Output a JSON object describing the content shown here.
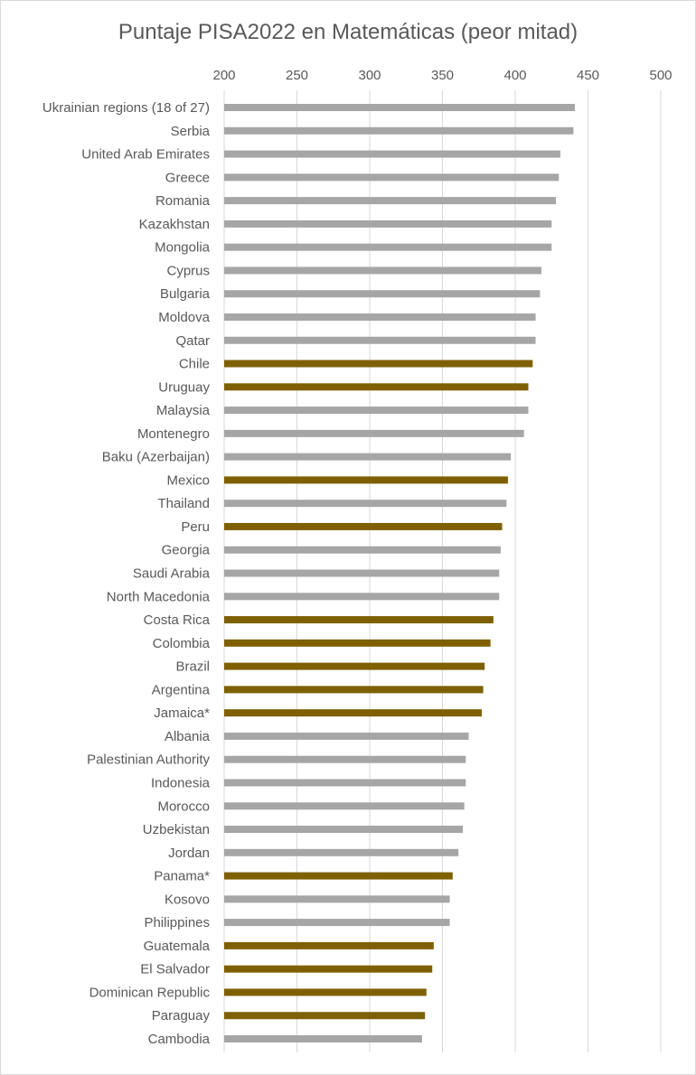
{
  "chart_data": {
    "type": "bar",
    "orientation": "horizontal",
    "title": "Puntaje PISA2022 en Matemáticas (peor mitad)",
    "xlim": [
      200,
      500
    ],
    "xticks": [
      200,
      250,
      300,
      350,
      400,
      450,
      500
    ],
    "grid": true,
    "colors": {
      "highlight": "#7f6000",
      "default": "#a6a6a6",
      "grid": "#d9d9d9"
    },
    "categories": [
      "Ukrainian regions (18 of 27)",
      "Serbia",
      "United Arab Emirates",
      "Greece",
      "Romania",
      "Kazakhstan",
      "Mongolia",
      "Cyprus",
      "Bulgaria",
      "Moldova",
      "Qatar",
      "Chile",
      "Uruguay",
      "Malaysia",
      "Montenegro",
      "Baku (Azerbaijan)",
      "Mexico",
      "Thailand",
      "Peru",
      "Georgia",
      "Saudi Arabia",
      "North Macedonia",
      "Costa Rica",
      "Colombia",
      "Brazil",
      "Argentina",
      "Jamaica*",
      "Albania",
      "Palestinian Authority",
      "Indonesia",
      "Morocco",
      "Uzbekistan",
      "Jordan",
      "Panama*",
      "Kosovo",
      "Philippines",
      "Guatemala",
      "El Salvador",
      "Dominican Republic",
      "Paraguay",
      "Cambodia"
    ],
    "values": [
      441,
      440,
      431,
      430,
      428,
      425,
      425,
      418,
      417,
      414,
      414,
      412,
      409,
      409,
      406,
      397,
      395,
      394,
      391,
      390,
      389,
      389,
      385,
      383,
      379,
      378,
      377,
      368,
      366,
      366,
      365,
      364,
      361,
      357,
      355,
      355,
      344,
      343,
      339,
      338,
      336
    ],
    "highlighted": [
      "Chile",
      "Uruguay",
      "Mexico",
      "Peru",
      "Costa Rica",
      "Colombia",
      "Brazil",
      "Argentina",
      "Jamaica*",
      "Panama*",
      "Guatemala",
      "El Salvador",
      "Dominican Republic",
      "Paraguay"
    ]
  }
}
